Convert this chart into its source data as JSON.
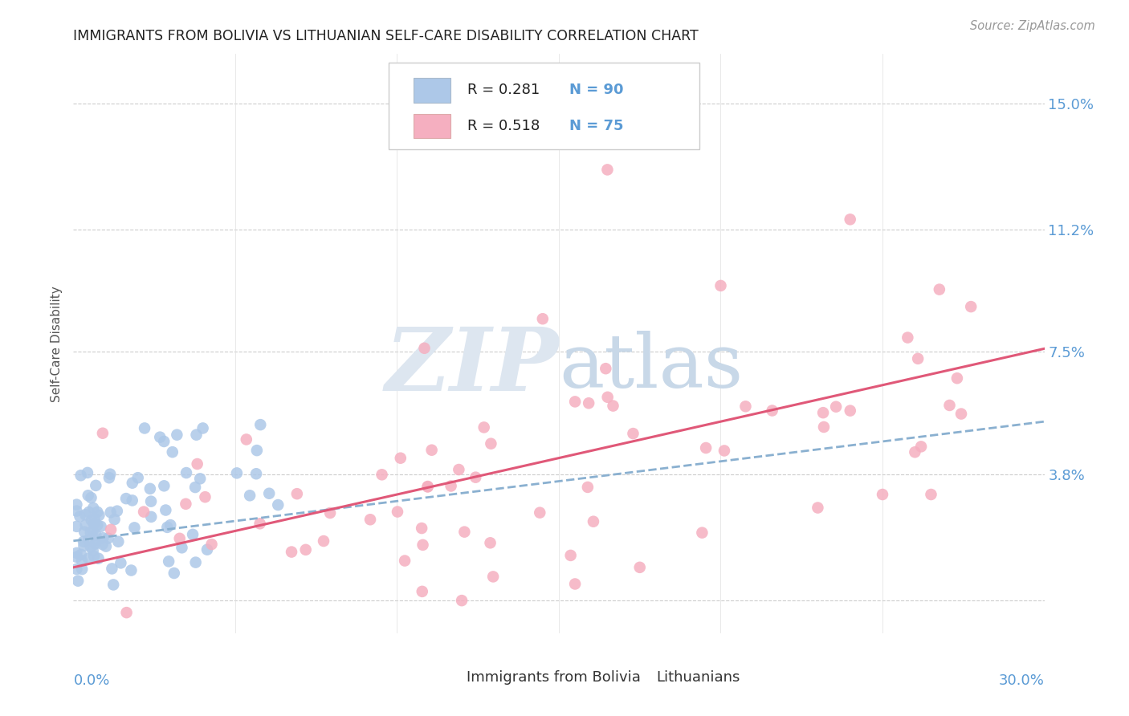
{
  "title": "IMMIGRANTS FROM BOLIVIA VS LITHUANIAN SELF-CARE DISABILITY CORRELATION CHART",
  "source": "Source: ZipAtlas.com",
  "ylabel": "Self-Care Disability",
  "ytick_vals": [
    0.0,
    0.038,
    0.075,
    0.112,
    0.15
  ],
  "ytick_labels": [
    "",
    "3.8%",
    "7.5%",
    "11.2%",
    "15.0%"
  ],
  "xlim": [
    0.0,
    0.3
  ],
  "ylim": [
    -0.01,
    0.165
  ],
  "blue_color": "#adc8e8",
  "pink_color": "#f5afc0",
  "blue_line_color": "#8ab0d0",
  "pink_line_color": "#e05878",
  "axis_label_color": "#5b9bd5",
  "legend_text_dark": "#222222",
  "legend_n_color": "#5b9bd5",
  "watermark_zip_color": "#dde6f0",
  "watermark_atlas_color": "#c8d8e8",
  "title_color": "#222222",
  "source_color": "#999999",
  "grid_color": "#cccccc",
  "ylabel_color": "#555555"
}
